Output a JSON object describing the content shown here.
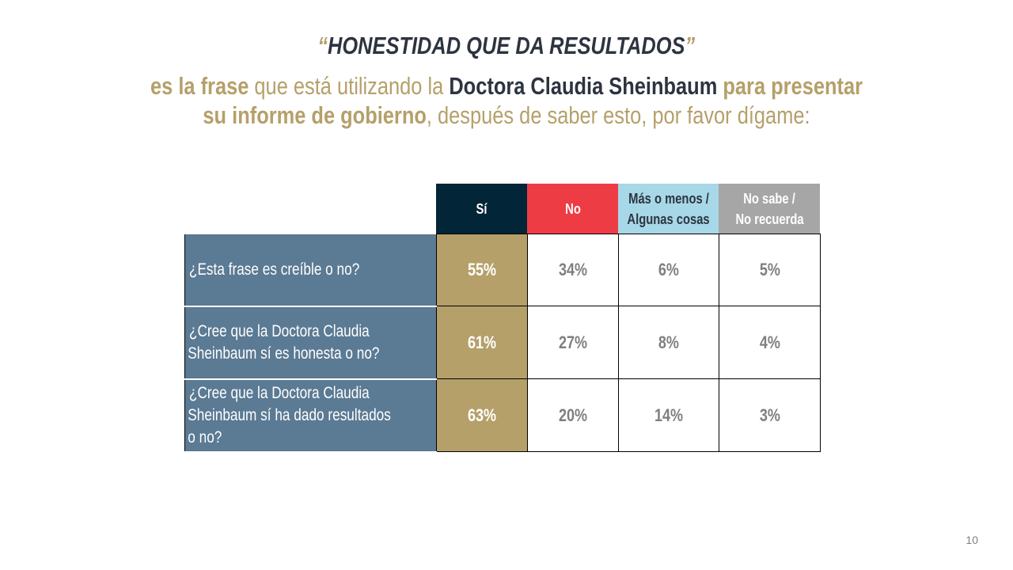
{
  "title": {
    "open_quote": "“",
    "text": "HONESTIDAD QUE DA RESULTADOS",
    "close_quote": "”"
  },
  "subtitle": {
    "p1": "es la frase",
    "p2": " que está utilizando la ",
    "p3": "Doctora Claudia Sheinbaum",
    "p4": " para presentar",
    "p5": "su informe de gobierno",
    "p6": ", después de saber esto, por favor dígame:"
  },
  "colors": {
    "si": "#022638",
    "no": "#ee3c45",
    "mas": "#a7d8e8",
    "nosabe": "#a6a6a6",
    "gold": "#b5a06a",
    "question": "#5b7a93"
  },
  "table": {
    "headers": {
      "si": "Sí",
      "no": "No",
      "mas_1": "Más o menos /",
      "mas_2": "Algunas cosas",
      "ns_1": "No sabe /",
      "ns_2": "No recuerda"
    },
    "rows": [
      {
        "q1": "¿Esta frase es creíble o no?",
        "si": "55%",
        "no": "34%",
        "mas": "6%",
        "ns": "5%"
      },
      {
        "q1": "¿Cree que la Doctora Claudia",
        "q2": "Sheinbaum sí es honesta o no?",
        "si": "61%",
        "no": "27%",
        "mas": "8%",
        "ns": "4%"
      },
      {
        "q1": "¿Cree que la Doctora Claudia",
        "q2": "Sheinbaum sí ha dado resultados",
        "q3": "o no?",
        "si": "63%",
        "no": "20%",
        "mas": "14%",
        "ns": "3%"
      }
    ]
  },
  "page_number": "10"
}
